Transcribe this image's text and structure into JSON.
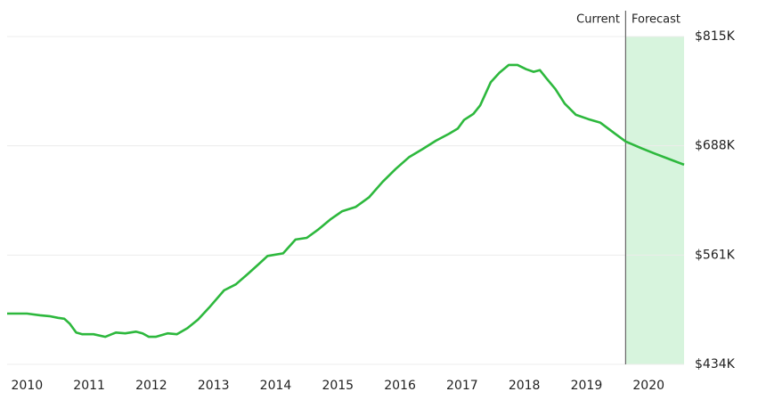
{
  "chart_data": {
    "type": "line",
    "annotations": {
      "current": "Current",
      "forecast": "Forecast"
    },
    "forecast_start": 2019.63,
    "forecast_color": "#d7f4dd",
    "x": [
      2009.68,
      2010.0,
      2010.21,
      2010.36,
      2010.5,
      2010.6,
      2010.69,
      2010.79,
      2010.89,
      2011.07,
      2011.26,
      2011.43,
      2011.58,
      2011.75,
      2011.86,
      2011.96,
      2012.07,
      2012.26,
      2012.41,
      2012.58,
      2012.75,
      2012.93,
      2013.17,
      2013.36,
      2013.55,
      2013.72,
      2013.87,
      2014.12,
      2014.32,
      2014.5,
      2014.69,
      2014.89,
      2015.07,
      2015.29,
      2015.5,
      2015.72,
      2015.93,
      2016.15,
      2016.36,
      2016.58,
      2016.79,
      2016.93,
      2017.03,
      2017.18,
      2017.29,
      2017.46,
      2017.6,
      2017.75,
      2017.89,
      2018.03,
      2018.15,
      2018.25,
      2018.36,
      2018.5,
      2018.65,
      2018.83,
      2019.03,
      2019.22,
      2019.46,
      2019.63,
      2019.89,
      2020.1,
      2020.39,
      2020.57
    ],
    "series": [
      {
        "color": "#2db83d",
        "values": [
          493000,
          493000,
          491000,
          490000,
          488000,
          487000,
          481000,
          471000,
          469000,
          469000,
          466000,
          471000,
          470000,
          472000,
          470000,
          466000,
          466000,
          470000,
          469000,
          476000,
          486000,
          500000,
          520000,
          527000,
          539000,
          550000,
          560000,
          563000,
          579000,
          581000,
          591000,
          603000,
          612000,
          617000,
          628000,
          646000,
          661000,
          675000,
          684000,
          694000,
          702000,
          708000,
          718000,
          725000,
          735000,
          762000,
          773000,
          782000,
          782000,
          777000,
          774000,
          776000,
          766000,
          754000,
          737000,
          724000,
          719000,
          715000,
          702000,
          693000,
          685000,
          679000,
          671000,
          666000
        ]
      }
    ],
    "xlim": [
      2009.68,
      2020.57
    ],
    "xticks": [
      2010,
      2011,
      2012,
      2013,
      2014,
      2015,
      2016,
      2017,
      2018,
      2019,
      2020
    ],
    "ylim": [
      434000,
      815000
    ],
    "yticks": [
      {
        "value": 434000,
        "label": "$434K"
      },
      {
        "value": 561000,
        "label": "$561K"
      },
      {
        "value": 688000,
        "label": "$688K"
      },
      {
        "value": 815000,
        "label": "$815K"
      }
    ],
    "grid": true
  }
}
